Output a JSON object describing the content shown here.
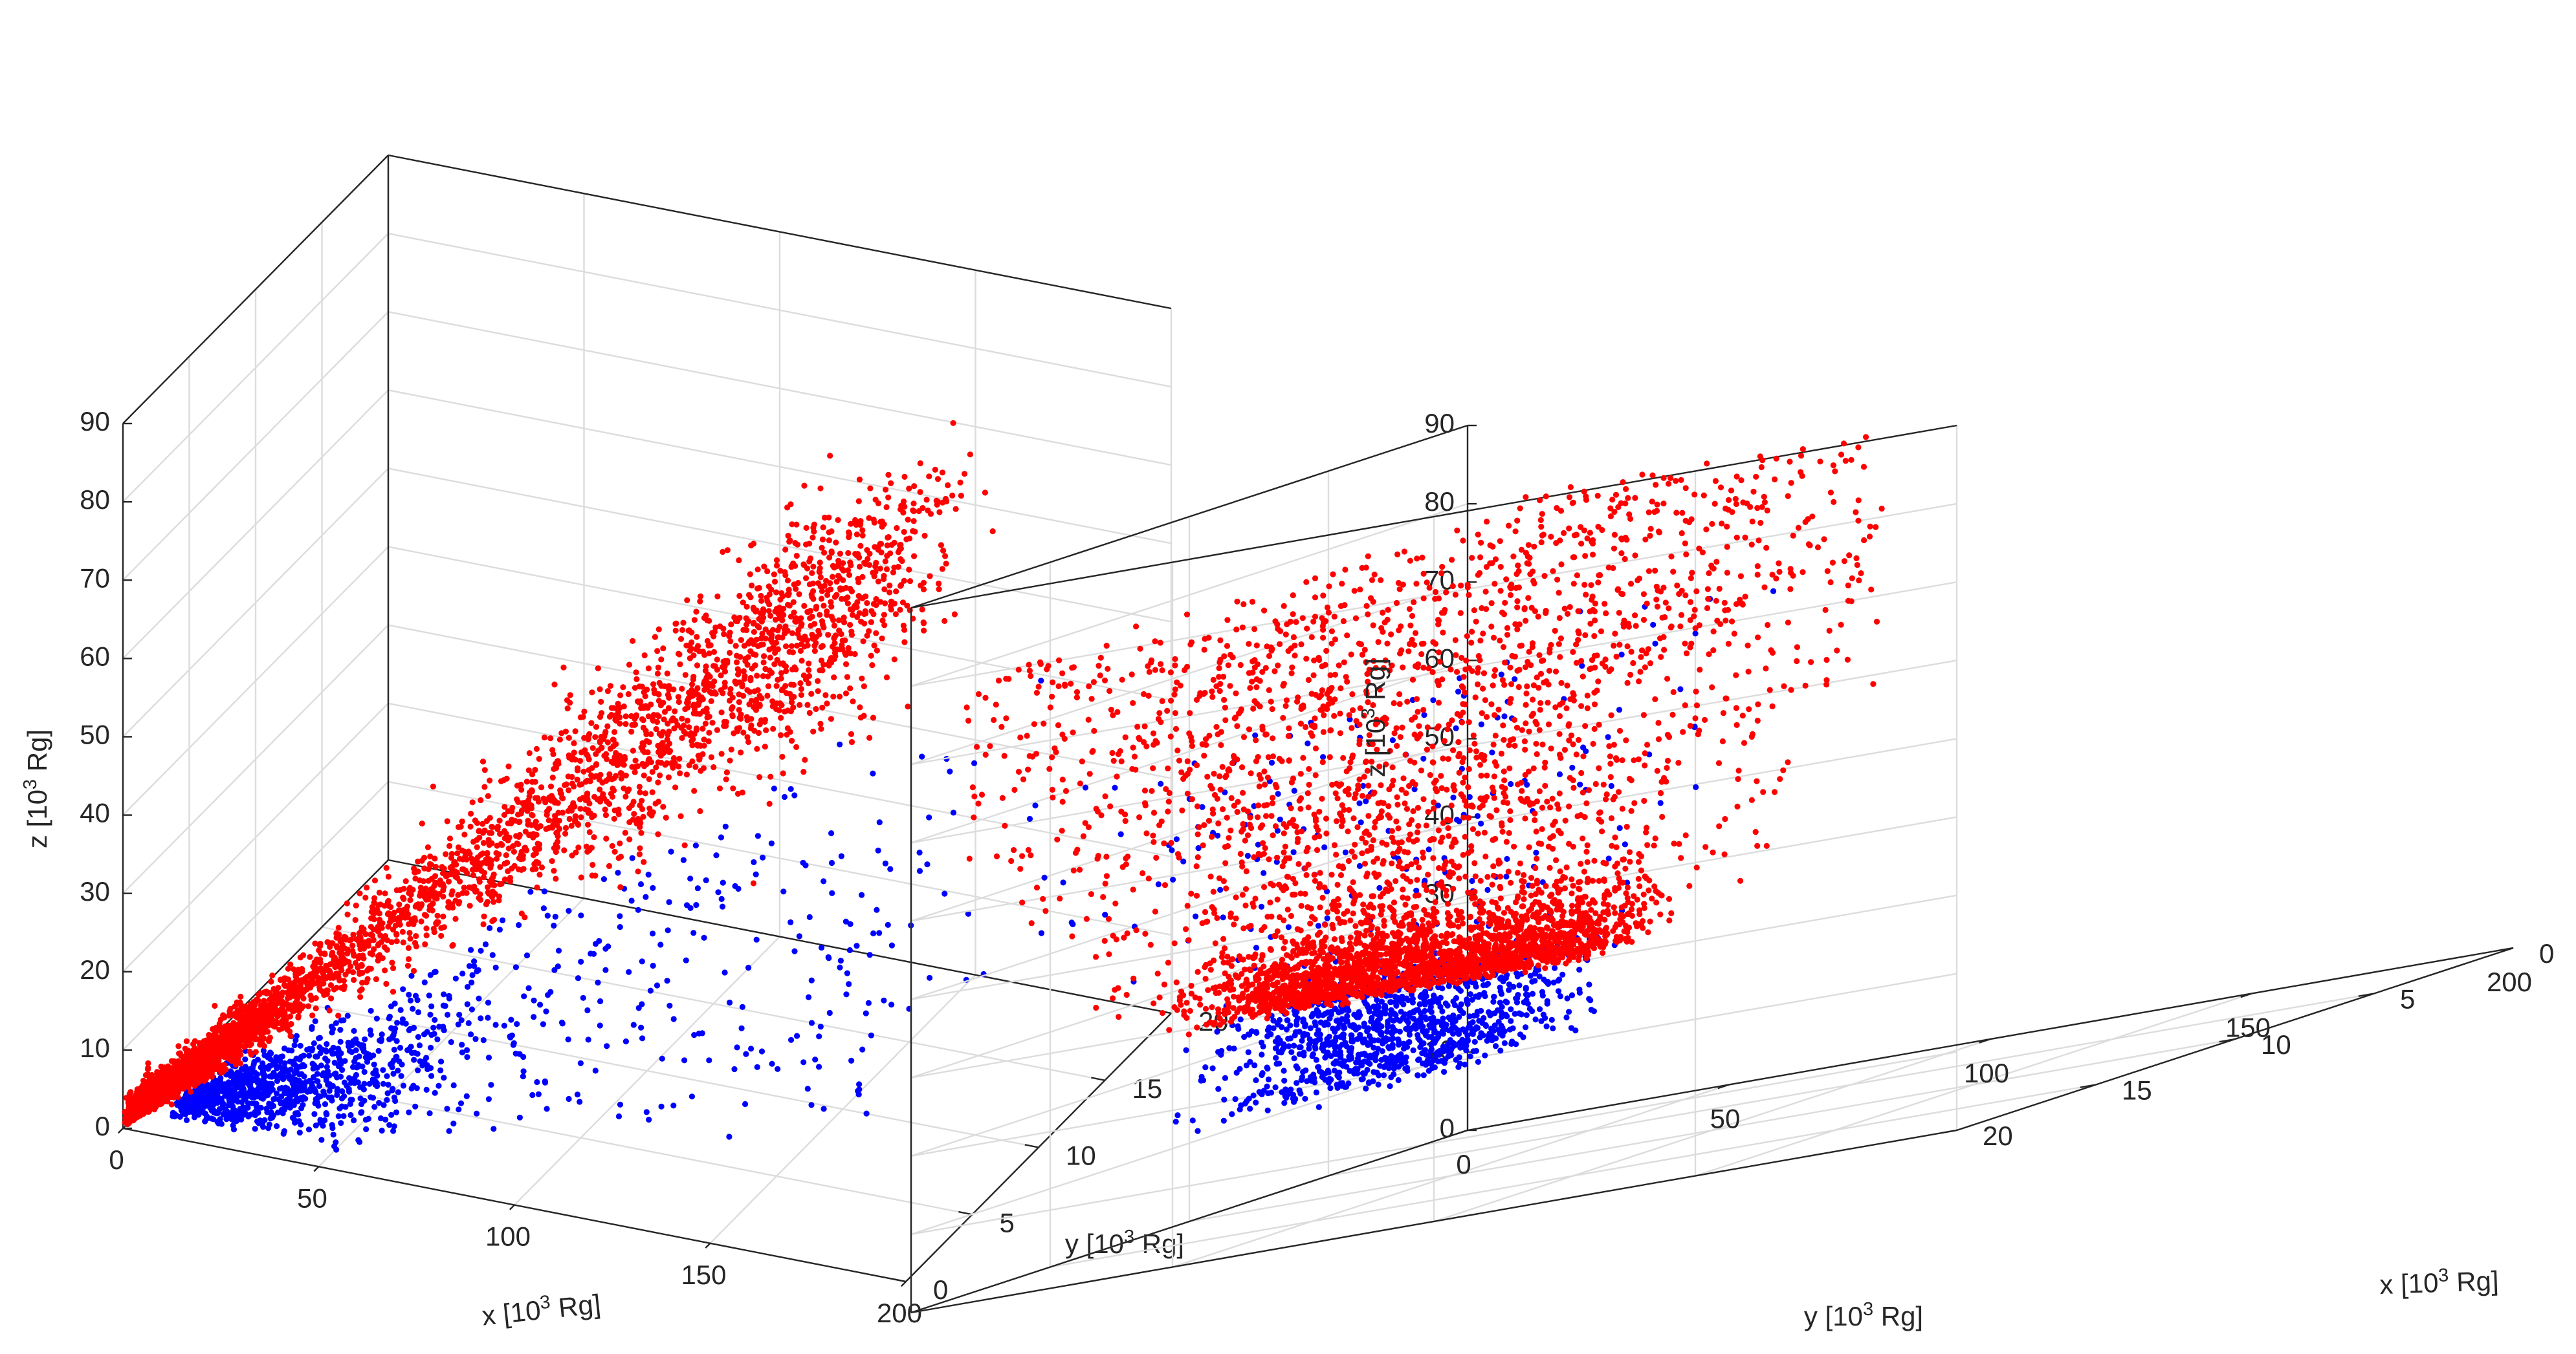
{
  "figure": {
    "background": "#ffffff",
    "axis_color": "#262626",
    "grid_color": "#dcdcdc",
    "red_series_color": "#ff0000",
    "blue_series_color": "#0000ff"
  },
  "chart_data": [
    {
      "type": "scatter3d",
      "view": "left",
      "title": "",
      "xlabel": {
        "prefix": "x [10",
        "exp": "3",
        "suffix": " Rg]"
      },
      "ylabel": {
        "prefix": "y [10",
        "exp": "3",
        "suffix": " Rg]"
      },
      "zlabel": {
        "prefix": "z [10",
        "exp": "3",
        "suffix": " Rg]"
      },
      "xlim": [
        0,
        200
      ],
      "ylim": [
        0,
        20
      ],
      "zlim": [
        0,
        90
      ],
      "xticks": [
        0,
        50,
        100,
        150,
        200
      ],
      "yticks": [
        0,
        5,
        10,
        15,
        20
      ],
      "zticks": [
        0,
        10,
        20,
        30,
        40,
        50,
        60,
        70,
        80,
        90
      ],
      "grid": true,
      "series": [
        {
          "name": "red",
          "color": "#ff0000",
          "n": 4200,
          "model": "wedge",
          "x_range": [
            0,
            200
          ],
          "y_half_width_ratio": 0.05,
          "z_to_x_ratio": 0.45,
          "z_spread": 0.1,
          "description": "dense near origin, rising linearly to z approx 85 at x approx 190"
        },
        {
          "name": "blue",
          "color": "#0000ff",
          "n": 1300,
          "model": "lower-wedge",
          "x_range": [
            0,
            190
          ],
          "z_to_x_ratio": 0.3,
          "description": "below red points, dense cluster near x 0-40, sparse up to z approx 45"
        }
      ]
    },
    {
      "type": "scatter3d",
      "view": "right",
      "title": "",
      "xlabel": {
        "prefix": "x [10",
        "exp": "3",
        "suffix": " Rg]"
      },
      "ylabel": {
        "prefix": "y [10",
        "exp": "3",
        "suffix": " Rg]"
      },
      "zlabel": {
        "prefix": "z [10",
        "exp": "3",
        "suffix": " Rg]"
      },
      "xlim": [
        0,
        200
      ],
      "ylim": [
        0,
        20
      ],
      "zlim": [
        0,
        90
      ],
      "xticks": [
        0,
        50,
        100,
        150,
        200
      ],
      "yticks": [
        0,
        5,
        10,
        15,
        20
      ],
      "zticks": [
        0,
        10,
        20,
        30,
        40,
        50,
        60,
        70,
        80,
        90
      ],
      "grid": true,
      "series": [
        {
          "name": "red",
          "color": "#ff0000",
          "n": 4200,
          "model": "cone",
          "y_center": 10,
          "z_range": [
            25,
            80
          ],
          "description": "funnel opening upward, dense core near z 28-35, wide spread to z approx 80"
        },
        {
          "name": "blue",
          "color": "#0000ff",
          "n": 1300,
          "model": "base",
          "y_center": 10,
          "z_range": [
            14,
            27
          ],
          "description": "dense base cluster near z 18-26 with sparse points along the cone edges"
        }
      ]
    }
  ]
}
